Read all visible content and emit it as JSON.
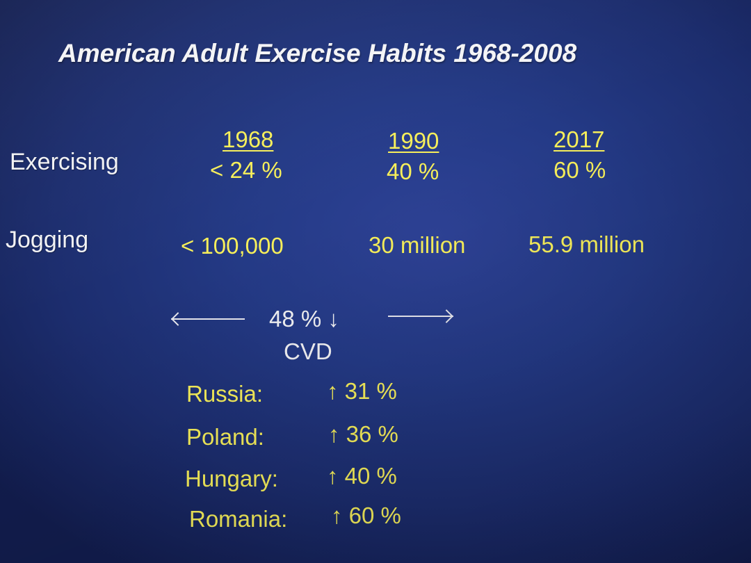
{
  "title": "American Adult Exercise Habits 1968-2008",
  "rows": {
    "exercising_label": "Exercising",
    "jogging_label": "Jogging"
  },
  "columns": [
    {
      "year": "1968",
      "exercising": "< 24 %",
      "jogging": "< 100,000"
    },
    {
      "year": "1990",
      "exercising": "40 %",
      "jogging": "30 million"
    },
    {
      "year": "2017",
      "exercising": "60 %",
      "jogging": "55.9 million"
    }
  ],
  "cvd": {
    "change": "48 % ↓",
    "label": "CVD"
  },
  "countries": [
    {
      "name": "Russia:",
      "change": "↑ 31 %"
    },
    {
      "name": "Poland:",
      "change": "↑ 36 %"
    },
    {
      "name": "Hungary:",
      "change": "↑ 40 %"
    },
    {
      "name": "Romania:",
      "change": "↑ 60 %"
    }
  ],
  "colors": {
    "background": "#243a86",
    "white_text": "#f2f2f4",
    "yellow_text": "#f7ef5a"
  }
}
